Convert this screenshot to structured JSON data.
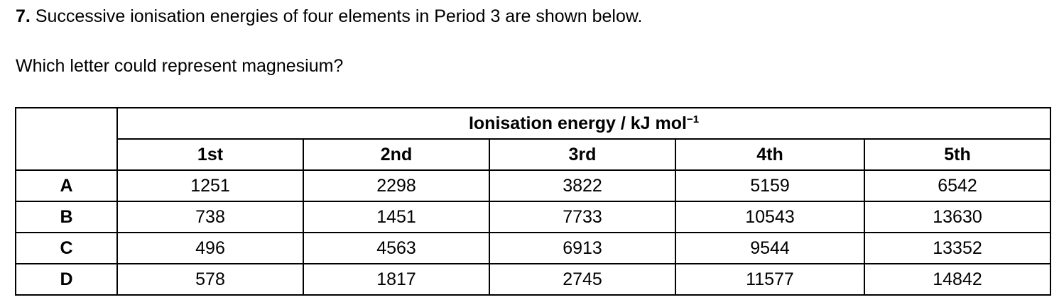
{
  "question": {
    "number": "7.",
    "text": "Successive ionisation energies of four elements in Period 3 are shown below.",
    "prompt": "Which letter could represent magnesium?"
  },
  "table": {
    "header_title": "Ionisation energy / kJ mol",
    "header_superscript": "−1",
    "columns": [
      "1st",
      "2nd",
      "3rd",
      "4th",
      "5th"
    ],
    "rows": [
      {
        "label": "A",
        "values": [
          "1251",
          "2298",
          "3822",
          "5159",
          "6542"
        ]
      },
      {
        "label": "B",
        "values": [
          "738",
          "1451",
          "7733",
          "10543",
          "13630"
        ]
      },
      {
        "label": "C",
        "values": [
          "496",
          "4563",
          "6913",
          "9544",
          "13352"
        ]
      },
      {
        "label": "D",
        "values": [
          "578",
          "1817",
          "2745",
          "11577",
          "14842"
        ]
      }
    ]
  }
}
